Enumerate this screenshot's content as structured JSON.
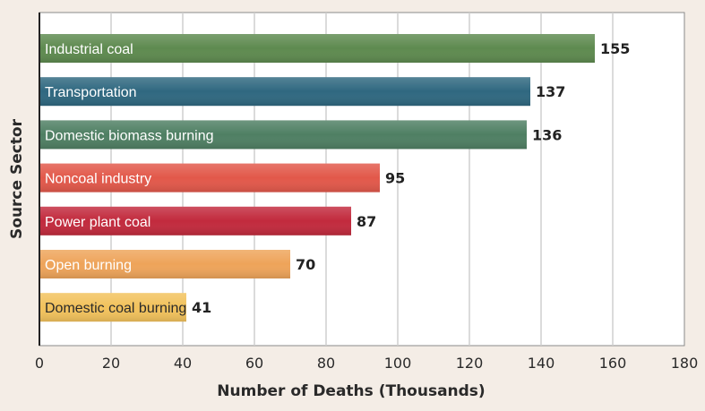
{
  "chart_data": {
    "type": "bar",
    "orientation": "horizontal",
    "categories": [
      "Industrial coal",
      "Transportation",
      "Domestic biomass burning",
      "Noncoal industry",
      "Power plant coal",
      "Open burning",
      "Domestic coal burning"
    ],
    "values": [
      155,
      137,
      136,
      95,
      87,
      70,
      41
    ],
    "value_labels": [
      "155",
      "137",
      "136",
      "95",
      "87",
      "70",
      "41"
    ],
    "colors": [
      "#5e8a4f",
      "#2f6880",
      "#4f7f63",
      "#e2584a",
      "#c22a3d",
      "#eea45a",
      "#f2c25c"
    ],
    "label_colors": [
      "#ffffff",
      "#ffffff",
      "#ffffff",
      "#ffffff",
      "#ffffff",
      "#ffffff",
      "#2a2a2a"
    ],
    "xlabel": "Number of Deaths (Thousands)",
    "ylabel": "Source Sector",
    "xlim": [
      0,
      180
    ],
    "xticks": [
      0,
      20,
      40,
      60,
      80,
      100,
      120,
      140,
      160,
      180
    ],
    "xtick_labels": [
      "0",
      "20",
      "40",
      "60",
      "80",
      "100",
      "120",
      "140",
      "160",
      "180"
    ],
    "grid": "vertical",
    "legend": "none"
  }
}
